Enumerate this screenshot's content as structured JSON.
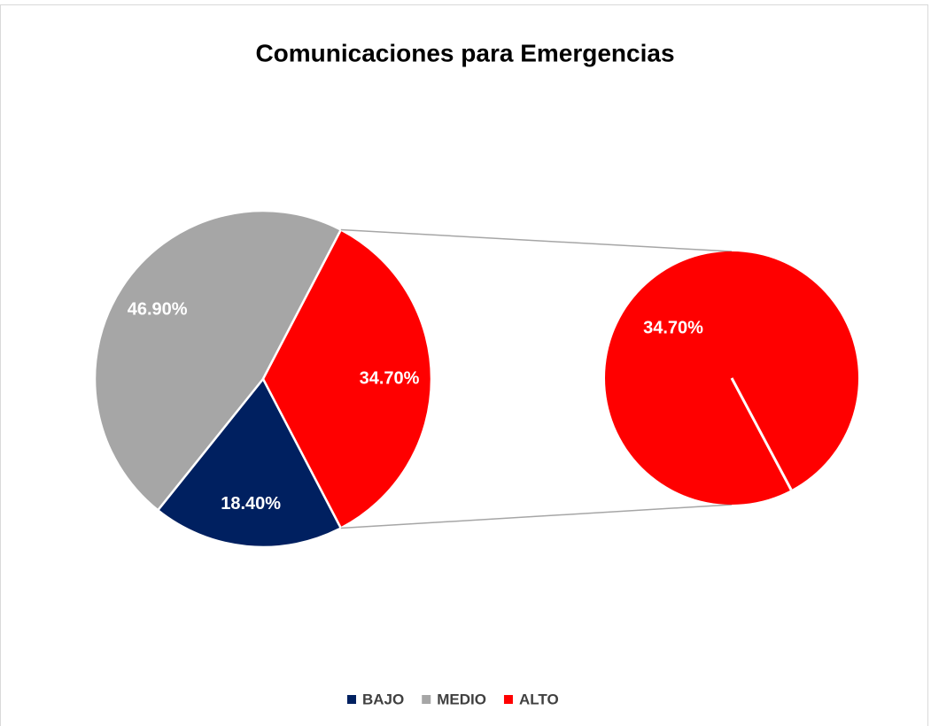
{
  "chart_data": {
    "type": "pie-of-pie",
    "title": "Comunicaciones para Emergencias",
    "categories": [
      "BAJO",
      "MEDIO",
      "ALTO"
    ],
    "values": [
      18.4,
      46.9,
      34.7
    ],
    "value_labels": [
      "18.40%",
      "46.90%",
      "34.70%"
    ],
    "colors": [
      "#002060",
      "#a6a6a6",
      "#ff0000"
    ],
    "legend": "bottom"
  }
}
